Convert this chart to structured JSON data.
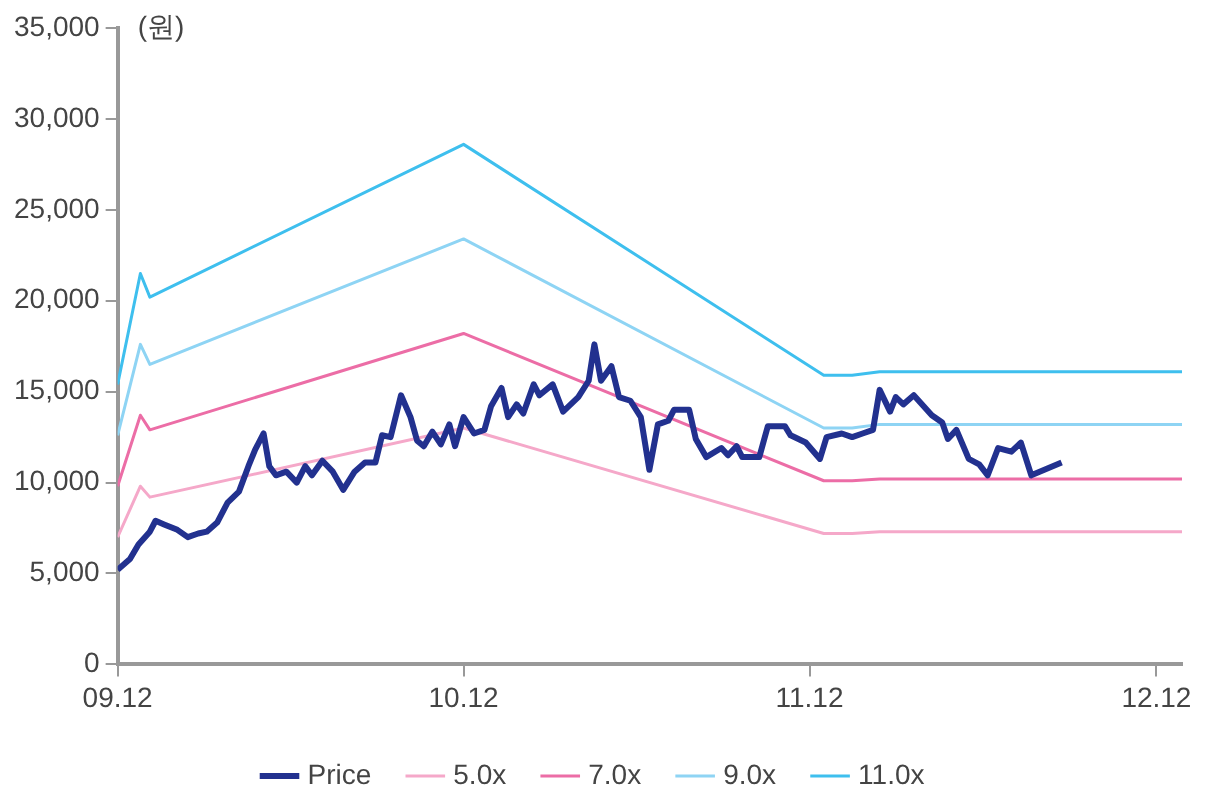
{
  "chart_data": {
    "type": "line",
    "ylabel": "(원)",
    "legend": "bottom",
    "grid": false,
    "xlim": [
      "2009-12-01",
      "2012-12-28"
    ],
    "xticks": [
      {
        "value": "2009-12-01",
        "label": "09.12"
      },
      {
        "value": "2010-12-01",
        "label": "10.12"
      },
      {
        "value": "2011-12-01",
        "label": "11.12"
      },
      {
        "value": "2012-12-01",
        "label": "12.12"
      }
    ],
    "ylim": [
      0,
      35000
    ],
    "yticks": [
      {
        "value": 0,
        "label": "0"
      },
      {
        "value": 5000,
        "label": "5,000"
      },
      {
        "value": 10000,
        "label": "10,000"
      },
      {
        "value": 15000,
        "label": "15,000"
      },
      {
        "value": 20000,
        "label": "20,000"
      },
      {
        "value": 25000,
        "label": "25,000"
      },
      {
        "value": 30000,
        "label": "30,000"
      },
      {
        "value": 35000,
        "label": "35,000"
      }
    ],
    "series": [
      {
        "name": "Price",
        "color": "#22318f",
        "x": [
          "2009-12-01",
          "2009-12-14",
          "2009-12-23",
          "2010-01-04",
          "2010-01-10",
          "2010-01-19",
          "2010-02-02",
          "2010-02-13",
          "2010-02-24",
          "2010-03-05",
          "2010-03-16",
          "2010-03-27",
          "2010-04-08",
          "2010-04-18",
          "2010-04-25",
          "2010-05-04",
          "2010-05-10",
          "2010-05-17",
          "2010-05-28",
          "2010-06-08",
          "2010-06-17",
          "2010-06-24",
          "2010-07-05",
          "2010-07-16",
          "2010-07-27",
          "2010-08-08",
          "2010-08-19",
          "2010-08-30",
          "2010-09-06",
          "2010-09-15",
          "2010-09-26",
          "2010-10-06",
          "2010-10-13",
          "2010-10-20",
          "2010-10-29",
          "2010-11-07",
          "2010-11-16",
          "2010-11-22",
          "2010-12-01",
          "2010-12-12",
          "2010-12-23",
          "2010-12-30",
          "2011-01-10",
          "2011-01-17",
          "2011-01-26",
          "2011-02-02",
          "2011-02-13",
          "2011-02-19",
          "2011-03-05",
          "2011-03-16",
          "2011-04-01",
          "2011-04-12",
          "2011-04-18",
          "2011-04-25",
          "2011-05-06",
          "2011-05-14",
          "2011-05-26",
          "2011-06-06",
          "2011-06-15",
          "2011-06-24",
          "2011-07-05",
          "2011-07-11",
          "2011-07-27",
          "2011-08-03",
          "2011-08-14",
          "2011-08-30",
          "2011-09-06",
          "2011-09-15",
          "2011-09-21",
          "2011-10-09",
          "2011-10-18",
          "2011-11-05",
          "2011-11-11",
          "2011-11-27",
          "2011-12-12",
          "2011-12-19",
          "2012-01-04",
          "2012-01-15",
          "2012-01-26",
          "2012-02-06",
          "2012-02-13",
          "2012-02-24",
          "2012-03-01",
          "2012-03-09",
          "2012-03-20",
          "2012-04-08",
          "2012-04-19",
          "2012-04-25",
          "2012-05-04",
          "2012-05-17",
          "2012-05-28",
          "2012-06-06",
          "2012-06-17",
          "2012-07-01",
          "2012-07-11",
          "2012-07-22",
          "2012-08-23"
        ],
        "values": [
          5200,
          5800,
          6600,
          7300,
          7900,
          7700,
          7400,
          7000,
          7200,
          7300,
          7800,
          8900,
          9500,
          10900,
          11800,
          12700,
          10900,
          10400,
          10600,
          10000,
          10900,
          10400,
          11200,
          10600,
          9600,
          10600,
          11100,
          11100,
          12600,
          12500,
          14800,
          13600,
          12300,
          12000,
          12800,
          12100,
          13200,
          12000,
          13600,
          12700,
          12900,
          14200,
          15200,
          13600,
          14300,
          13800,
          15400,
          14800,
          15400,
          13900,
          14700,
          15600,
          17600,
          15600,
          16400,
          14700,
          14500,
          13600,
          10700,
          13200,
          13400,
          14000,
          14000,
          12400,
          11400,
          11900,
          11500,
          12000,
          11400,
          11400,
          13100,
          13100,
          12600,
          12200,
          11300,
          12500,
          12700,
          12500,
          12700,
          12900,
          15100,
          13900,
          14700,
          14300,
          14800,
          13700,
          13300,
          12400,
          12900,
          11300,
          11000,
          10400,
          11900,
          11700,
          12200,
          10400,
          11100
        ]
      },
      {
        "name": "5.0x",
        "color": "#f5a8c9",
        "x": [
          "2009-12-01",
          "2009-12-25",
          "2010-01-04",
          "2010-12-01",
          "2011-12-16",
          "2012-01-15",
          "2012-02-13",
          "2012-12-28"
        ],
        "values": [
          7000,
          9800,
          9200,
          13000,
          7200,
          7200,
          7300,
          7300
        ]
      },
      {
        "name": "7.0x",
        "color": "#ec6da6",
        "x": [
          "2009-12-01",
          "2009-12-25",
          "2010-01-04",
          "2010-12-01",
          "2011-12-16",
          "2012-01-15",
          "2012-02-13",
          "2012-12-28"
        ],
        "values": [
          9800,
          13700,
          12900,
          18200,
          10100,
          10100,
          10200,
          10200
        ]
      },
      {
        "name": "9.0x",
        "color": "#8ed4f4",
        "x": [
          "2009-12-01",
          "2009-12-25",
          "2010-01-04",
          "2010-12-01",
          "2011-12-16",
          "2012-01-15",
          "2012-02-13",
          "2012-12-28"
        ],
        "values": [
          12600,
          17600,
          16500,
          23400,
          13000,
          13000,
          13200,
          13200
        ]
      },
      {
        "name": "11.0x",
        "color": "#3ebfee",
        "x": [
          "2009-12-01",
          "2009-12-25",
          "2010-01-04",
          "2010-12-01",
          "2011-12-16",
          "2012-01-15",
          "2012-02-13",
          "2012-12-28"
        ],
        "values": [
          15400,
          21500,
          20200,
          28600,
          15900,
          15900,
          16100,
          16100
        ]
      }
    ]
  }
}
